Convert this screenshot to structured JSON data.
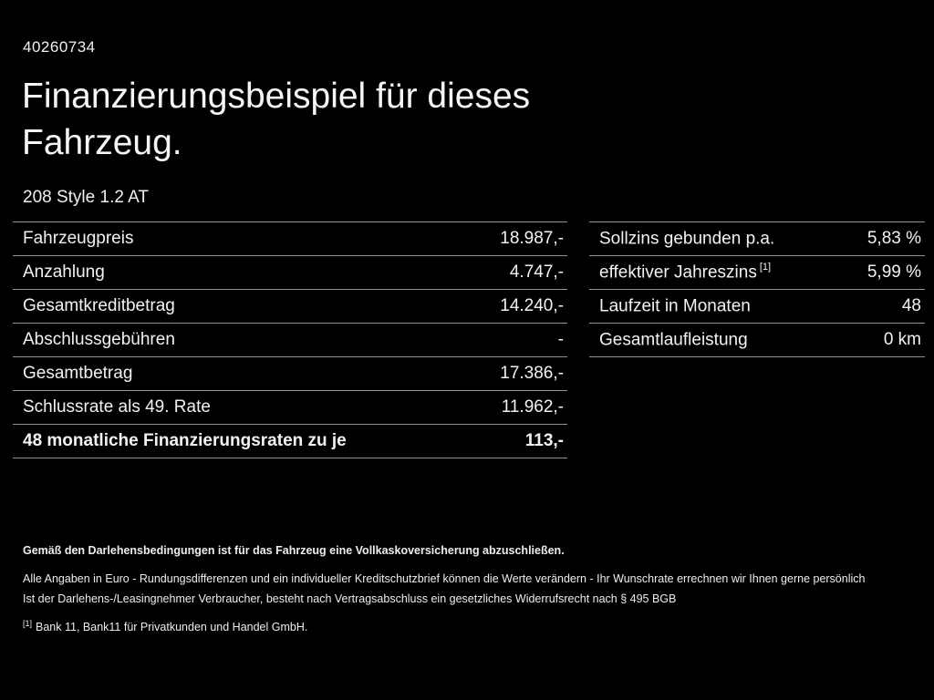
{
  "page": {
    "id_number": "40260734",
    "title_line1": "Finanzierungsbeispiel für dieses",
    "title_line2": "Fahrzeug.",
    "subtitle": "208 Style 1.2 AT"
  },
  "left_table": {
    "rows": [
      {
        "label": "Fahrzeugpreis",
        "value": "18.987,-"
      },
      {
        "label": "Anzahlung",
        "value": "4.747,-"
      },
      {
        "label": "Gesamtkreditbetrag",
        "value": "14.240,-"
      },
      {
        "label": "Abschlussgebühren",
        "value": "-"
      },
      {
        "label": "Gesamtbetrag",
        "value": "17.386,-"
      },
      {
        "label": "Schlussrate als 49. Rate",
        "value": "11.962,-"
      },
      {
        "label": "48 monatliche Finanzierungsraten zu je",
        "value": "113,-",
        "bold": true
      }
    ]
  },
  "right_table": {
    "rows": [
      {
        "label": "Sollzins gebunden p.a.",
        "sup": "",
        "value": "5,83 %"
      },
      {
        "label": "effektiver Jahreszins",
        "sup": "[1]",
        "value": "5,99 %"
      },
      {
        "label": "Laufzeit in Monaten",
        "sup": "",
        "value": "48"
      },
      {
        "label": "Gesamtlaufleistung",
        "sup": "",
        "value": "0 km"
      }
    ]
  },
  "footer": {
    "bold_line": "Gemäß den Darlehensbedingungen ist für das Fahrzeug eine Vollkaskoversicherung abzuschließen.",
    "line2": "Alle Angaben in Euro - Rundungsdifferenzen und ein individueller Kreditschutzbrief können die Werte verändern - Ihr Wunschrate errechnen wir Ihnen gerne persönlich",
    "line3": "Ist der Darlehens-/Leasingnehmer Verbraucher, besteht nach Vertragsabschluss ein gesetzliches Widerrufsrecht nach § 495 BGB",
    "footnote_marker": "[1]",
    "footnote_text": "Bank 11, Bank11 für Privatkunden und Handel GmbH."
  }
}
